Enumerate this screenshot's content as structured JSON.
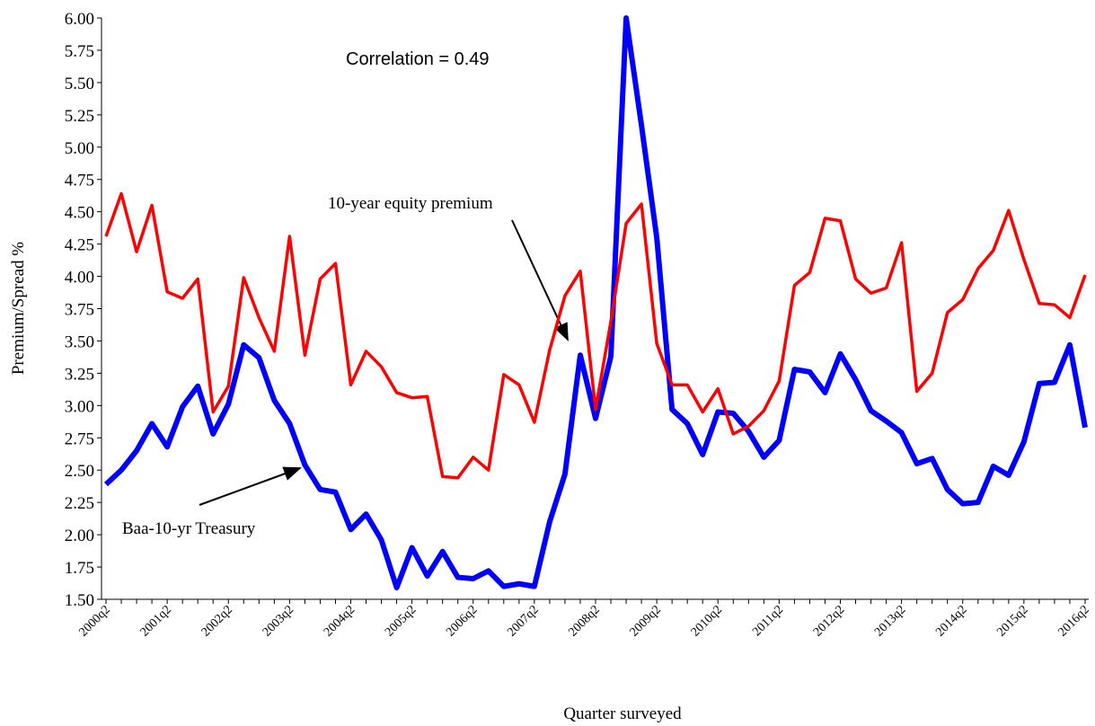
{
  "chart_data": {
    "type": "line",
    "annotation": "Correlation = 0.49",
    "x_label": "Quarter surveyed",
    "y_label": "Premium/Spread %",
    "categories": [
      "2000q2",
      null,
      null,
      null,
      "2001q2",
      null,
      null,
      null,
      "2002q2",
      null,
      null,
      null,
      "2003q2",
      null,
      null,
      null,
      "2004q2",
      null,
      null,
      null,
      "2005q2",
      null,
      null,
      null,
      "2006q2",
      null,
      null,
      null,
      "2007q2",
      null,
      null,
      null,
      "2008q2",
      null,
      null,
      null,
      "2009q2",
      null,
      null,
      null,
      "2010q2",
      null,
      null,
      null,
      "2011q2",
      null,
      null,
      null,
      "2012q2",
      null,
      null,
      null,
      "2013q2",
      null,
      null,
      null,
      "2014q2",
      null,
      null,
      null,
      "2015q2",
      null,
      null,
      null,
      "2016q2"
    ],
    "series": [
      {
        "name": "10-year equity premium",
        "color": "#ff0000",
        "values": [
          4.31,
          4.64,
          4.19,
          4.55,
          3.88,
          3.83,
          3.98,
          2.95,
          3.15,
          3.99,
          3.68,
          3.42,
          4.31,
          3.39,
          3.98,
          4.1,
          3.16,
          3.42,
          3.3,
          3.1,
          3.06,
          3.07,
          2.45,
          2.44,
          2.6,
          2.5,
          3.24,
          3.16,
          2.87,
          3.43,
          3.85,
          4.04,
          2.97,
          3.65,
          4.41,
          4.56,
          3.48,
          3.16,
          3.16,
          2.95,
          3.13,
          2.78,
          2.84,
          2.96,
          3.19,
          3.93,
          4.03,
          4.45,
          4.43,
          3.98,
          3.87,
          3.91,
          4.26,
          3.11,
          3.25,
          3.72,
          3.82,
          4.06,
          4.2,
          4.51,
          4.13,
          3.79,
          3.78,
          3.68,
          4.01
        ]
      },
      {
        "name": "Baa-10-yr Treasury",
        "color": "#0000ff",
        "values": [
          2.39,
          2.5,
          2.65,
          2.86,
          2.68,
          2.99,
          3.15,
          2.78,
          3.01,
          3.47,
          3.37,
          3.04,
          2.86,
          2.54,
          2.35,
          2.33,
          2.04,
          2.16,
          1.96,
          1.59,
          1.9,
          1.68,
          1.87,
          1.67,
          1.66,
          1.72,
          1.6,
          1.62,
          1.6,
          2.1,
          2.47,
          3.39,
          2.9,
          3.38,
          6.0,
          5.17,
          4.3,
          2.97,
          2.86,
          2.62,
          2.95,
          2.94,
          2.8,
          2.6,
          2.73,
          3.28,
          3.26,
          3.1,
          3.4,
          3.2,
          2.96,
          2.88,
          2.79,
          2.55,
          2.59,
          2.35,
          2.24,
          2.25,
          2.53,
          2.46,
          2.72,
          3.17,
          3.18,
          3.47,
          2.83
        ]
      }
    ],
    "ylim": [
      1.5,
      6
    ],
    "yticks": [
      {
        "value": 1.5,
        "label": "1.50"
      },
      {
        "value": 1.75,
        "label": "1.75"
      },
      {
        "value": 2,
        "label": "2.00"
      },
      {
        "value": 2.25,
        "label": "2.25"
      },
      {
        "value": 2.5,
        "label": "2.50"
      },
      {
        "value": 2.75,
        "label": "2.75"
      },
      {
        "value": 3,
        "label": "3.00"
      },
      {
        "value": 3.25,
        "label": "3.25"
      },
      {
        "value": 3.5,
        "label": "3.50"
      },
      {
        "value": 3.75,
        "label": "3.75"
      },
      {
        "value": 4,
        "label": "4.00"
      },
      {
        "value": 4.25,
        "label": "4.25"
      },
      {
        "value": 4.5,
        "label": "4.50"
      },
      {
        "value": 4.75,
        "label": "4.75"
      },
      {
        "value": 5,
        "label": "5.00"
      },
      {
        "value": 5.25,
        "label": "5.25"
      },
      {
        "value": 5.5,
        "label": "5.50"
      },
      {
        "value": 5.75,
        "label": "5.75"
      },
      {
        "value": 6,
        "label": "6.00"
      }
    ],
    "grid": false
  }
}
